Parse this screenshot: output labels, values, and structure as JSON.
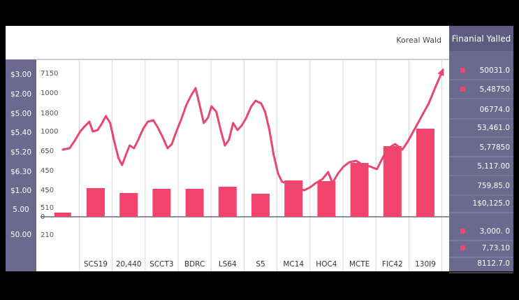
{
  "chart_data": {
    "type": "bar_line",
    "legend_label": "Koreal Wald",
    "panel_title": "Finanial Yalled",
    "categories": [
      null,
      "SCS19",
      "20,440",
      "SCCT3",
      "BDRC",
      "LS64",
      "S5",
      "MC14",
      "HOC4",
      "MCTE",
      "FIC42",
      "130I9"
    ],
    "values": [
      6,
      41,
      34,
      40,
      40,
      43,
      33,
      52,
      51,
      77,
      101,
      126
    ],
    "color": "#f2446c",
    "line": {
      "color": "#e8476f",
      "x": [
        0,
        0.21,
        0.38,
        0.53,
        0.68,
        0.81,
        0.91,
        1.06,
        1.17,
        1.31,
        1.44,
        1.55,
        1.69,
        1.8,
        1.91,
        2.03,
        2.16,
        2.29,
        2.44,
        2.58,
        2.75,
        2.88,
        3.03,
        3.18,
        3.31,
        3.43,
        3.6,
        3.75,
        3.9,
        4.03,
        4.15,
        4.28,
        4.41,
        4.51,
        4.66,
        4.79,
        4.92,
        5.04,
        5.17,
        5.3,
        5.42,
        5.55,
        5.72,
        5.85,
        6.02,
        6.14,
        6.27,
        6.4,
        6.53,
        6.65,
        6.82,
        6.99,
        7.16,
        7.33,
        7.5,
        7.67,
        7.88,
        8.05,
        8.18,
        8.35,
        8.52,
        8.69,
        8.9,
        9.11,
        9.32,
        9.53,
        9.7,
        9.87,
        10.08,
        10.3,
        10.47,
        10.68,
        10.89,
        11.1,
        11.31,
        11.53
      ],
      "values": [
        96,
        98,
        110,
        122,
        130,
        136,
        122,
        124,
        132,
        144,
        134,
        110,
        84,
        74,
        88,
        102,
        98,
        110,
        126,
        136,
        138,
        128,
        114,
        98,
        104,
        120,
        140,
        160,
        174,
        184,
        160,
        134,
        142,
        158,
        150,
        124,
        102,
        110,
        134,
        124,
        130,
        140,
        158,
        166,
        162,
        150,
        124,
        88,
        62,
        50,
        48,
        44,
        40,
        38,
        42,
        48,
        54,
        64,
        48,
        62,
        72,
        78,
        80,
        74,
        72,
        68,
        84,
        98,
        104,
        96,
        108,
        126,
        144,
        162,
        186,
        210
      ]
    },
    "xlim": [
      -0.5,
      11.5
    ],
    "ylim": [
      0,
      215
    ],
    "axis_labels": [
      "7150",
      "1000",
      "1800",
      "1000",
      "650",
      "450",
      "450",
      "510",
      "0",
      "210"
    ],
    "side_labels": [
      "$3.00",
      "$2.00",
      "$5.00",
      "$5.40",
      "$5.20",
      "$6.30",
      "$1.00",
      "5.00",
      "50.00"
    ],
    "panel_rows": [
      {
        "text": "50031.0",
        "marker": true
      },
      {
        "text": "5,48750",
        "marker": true
      },
      {
        "text": "06774.0",
        "marker": false
      },
      {
        "text": "53,461.0",
        "marker": false
      },
      {
        "text": "5,77850",
        "marker": false
      },
      {
        "text": "5,117.00",
        "marker": false
      },
      {
        "text": "759,85.0",
        "marker": false
      },
      {
        "text": "1$0,125.0",
        "marker": false
      },
      {
        "text": "3,000. 0",
        "marker": true
      },
      {
        "text": "7,73.10",
        "marker": true
      },
      {
        "text": "8112.7.0",
        "marker": false
      }
    ]
  }
}
